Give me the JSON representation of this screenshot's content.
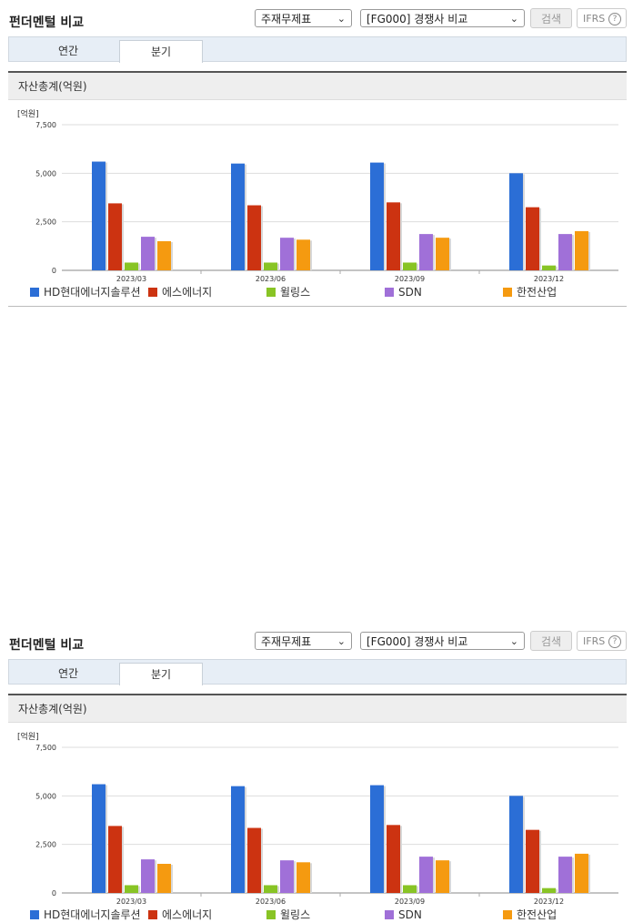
{
  "panels": [
    {
      "title": "펀더멘털 비교",
      "dropdown1": "주재무제표",
      "dropdown2": "[FG000] 경쟁사 비교",
      "search_label": "검색",
      "ifrs_label": "IFRS",
      "help_glyph": "?",
      "tabs": [
        "연간",
        "분기"
      ],
      "active_tab": "분기",
      "section_title": "자산총계(억원)",
      "unit_label": "[억원]"
    },
    {
      "title": "펀더멘털 비교",
      "dropdown1": "주재무제표",
      "dropdown2": "[FG000] 경쟁사 비교",
      "search_label": "검색",
      "ifrs_label": "IFRS",
      "help_glyph": "?",
      "tabs": [
        "연간",
        "분기"
      ],
      "active_tab": "분기",
      "section_title": "자산총계(억원)",
      "unit_label": "[억원]"
    }
  ],
  "chart_data": [
    {
      "type": "bar",
      "title": "자산총계(억원)",
      "ylabel": "[억원]",
      "ylim": [
        0,
        7500
      ],
      "yticks": [
        "0",
        "2,500",
        "5,000",
        "7,500"
      ],
      "categories": [
        "2023/03",
        "2023/06",
        "2023/09",
        "2023/12"
      ],
      "legend_position": "bottom",
      "series": [
        {
          "name": "HD현대에너지솔루션",
          "color": "#2b6ed6",
          "values": [
            5600,
            5500,
            5550,
            5000
          ]
        },
        {
          "name": "에스에너지",
          "color": "#cc3311",
          "values": [
            3450,
            3350,
            3500,
            3250
          ]
        },
        {
          "name": "윌링스",
          "color": "#88c425",
          "values": [
            400,
            400,
            400,
            250
          ]
        },
        {
          "name": "SDN",
          "color": "#a070d8",
          "values": [
            1730,
            1680,
            1870,
            1870
          ]
        },
        {
          "name": "한전산업",
          "color": "#f59a10",
          "values": [
            1500,
            1580,
            1680,
            2020
          ]
        }
      ]
    },
    {
      "type": "bar",
      "title": "자산총계(억원)",
      "ylabel": "[억원]",
      "ylim": [
        0,
        7500
      ],
      "yticks": [
        "0",
        "2,500",
        "5,000",
        "7,500"
      ],
      "categories": [
        "2023/03",
        "2023/06",
        "2023/09",
        "2023/12"
      ],
      "legend_position": "bottom",
      "series": [
        {
          "name": "HD현대에너지솔루션",
          "color": "#2b6ed6",
          "values": [
            5600,
            5500,
            5550,
            5000
          ]
        },
        {
          "name": "에스에너지",
          "color": "#cc3311",
          "values": [
            3450,
            3350,
            3500,
            3250
          ]
        },
        {
          "name": "윌링스",
          "color": "#88c425",
          "values": [
            400,
            400,
            400,
            250
          ]
        },
        {
          "name": "SDN",
          "color": "#a070d8",
          "values": [
            1730,
            1680,
            1870,
            1870
          ]
        },
        {
          "name": "한전산업",
          "color": "#f59a10",
          "values": [
            1500,
            1580,
            1680,
            2020
          ]
        }
      ]
    }
  ]
}
